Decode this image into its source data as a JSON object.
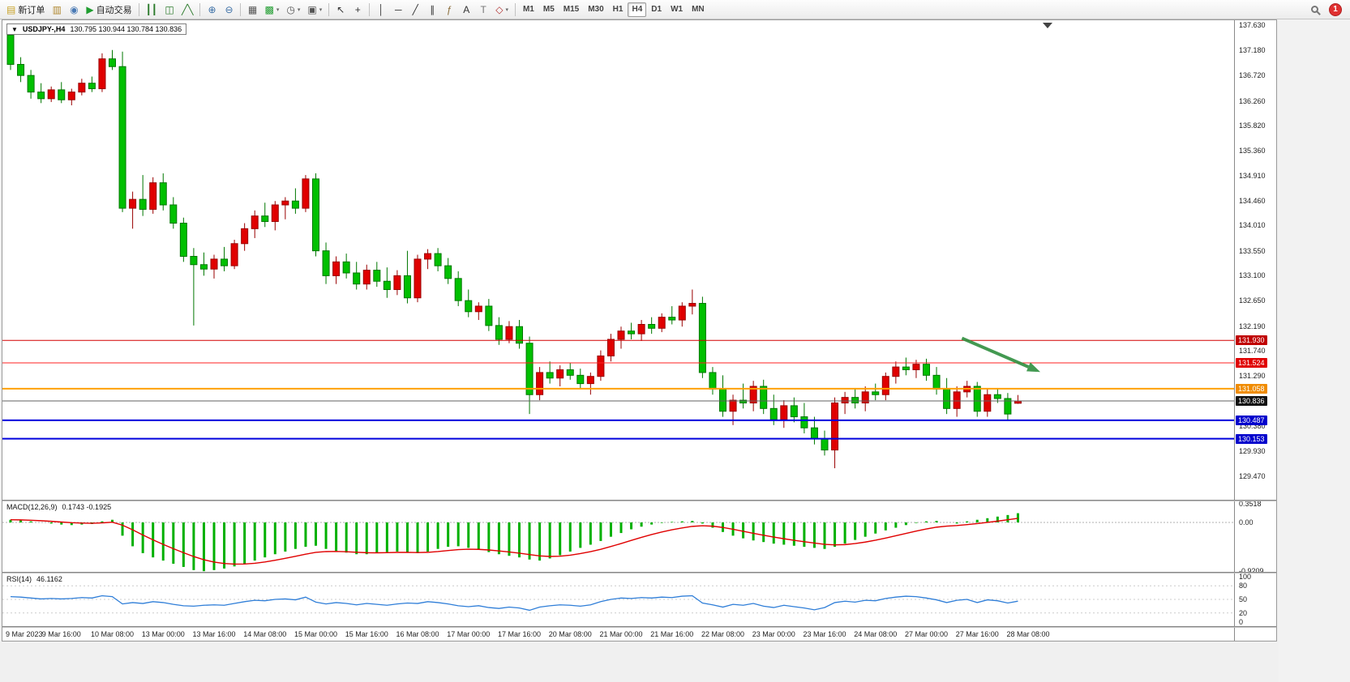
{
  "toolbar": {
    "notification_count": "1",
    "items": [
      {
        "name": "new-order-button",
        "label": "新订单",
        "glyph": "▤",
        "glyph_color": "#c9a227",
        "icon": "new-order-icon"
      },
      {
        "name": "charts-window-button",
        "glyph": "▥",
        "glyph_color": "#b08830",
        "icon": "chart-window-icon"
      },
      {
        "name": "profile-button",
        "glyph": "◉",
        "glyph_color": "#4a7ab5",
        "icon": "profile-icon"
      },
      {
        "name": "auto-trading-button",
        "label": "自动交易",
        "glyph": "▶",
        "glyph_color": "#1f9d2f",
        "icon": "play-icon"
      },
      {
        "type": "separator"
      },
      {
        "name": "bar-chart-button",
        "glyph": "┃┃",
        "glyph_color": "#2a7a2a",
        "icon": "bar-chart-icon"
      },
      {
        "name": "candlestick-chart-button",
        "glyph": "◫",
        "glyph_color": "#2a7a2a",
        "icon": "candlestick-icon"
      },
      {
        "name": "line-chart-button",
        "glyph": "╱╲",
        "glyph_color": "#2a7a2a",
        "icon": "line-chart-icon"
      },
      {
        "type": "separator"
      },
      {
        "name": "zoom-in-button",
        "glyph": "⊕",
        "glyph_color": "#3a6ea5",
        "icon": "zoom-in-icon"
      },
      {
        "name": "zoom-out-button",
        "glyph": "⊖",
        "glyph_color": "#3a6ea5",
        "icon": "zoom-out-icon"
      },
      {
        "type": "separator"
      },
      {
        "name": "tile-windows-button",
        "glyph": "▦",
        "glyph_color": "#555555",
        "icon": "tile-windows-icon"
      },
      {
        "name": "indicators-button",
        "glyph": "▩",
        "glyph_color": "#1f9d2f",
        "dropdown": true,
        "icon": "indicators-icon"
      },
      {
        "name": "periods-button",
        "glyph": "◷",
        "glyph_color": "#555555",
        "dropdown": true,
        "icon": "clock-icon"
      },
      {
        "name": "templates-button",
        "glyph": "▣",
        "glyph_color": "#555555",
        "dropdown": true,
        "icon": "template-icon"
      },
      {
        "type": "separator"
      },
      {
        "name": "cursor-button",
        "glyph": "↖",
        "glyph_color": "#333333",
        "icon": "cursor-icon"
      },
      {
        "name": "crosshair-button",
        "glyph": "+",
        "glyph_color": "#333333",
        "icon": "crosshair-icon"
      },
      {
        "type": "separator"
      },
      {
        "name": "vertical-line-button",
        "glyph": "│",
        "glyph_color": "#333333",
        "icon": "vertical-line-icon"
      },
      {
        "name": "horizontal-line-button",
        "glyph": "─",
        "glyph_color": "#333333",
        "icon": "horizontal-line-icon"
      },
      {
        "name": "trendline-button",
        "glyph": "╱",
        "glyph_color": "#333333",
        "icon": "trendline-icon"
      },
      {
        "name": "equidistant-channel-button",
        "glyph": "∥",
        "glyph_color": "#333333",
        "icon": "channel-icon"
      },
      {
        "name": "fibonacci-button",
        "glyph": "ƒ",
        "glyph_color": "#8a6d3b",
        "icon": "fibonacci-icon"
      },
      {
        "name": "text-button",
        "glyph": "A",
        "glyph_color": "#333333",
        "icon": "text-icon"
      },
      {
        "name": "label-button",
        "glyph": "T",
        "glyph_color": "#777777",
        "icon": "label-icon"
      },
      {
        "name": "shapes-button",
        "glyph": "◇",
        "glyph_color": "#b03030",
        "dropdown": true,
        "icon": "shapes-icon"
      },
      {
        "type": "separator"
      },
      {
        "name": "timeframe-m1",
        "label": "M1",
        "type": "timeframe"
      },
      {
        "name": "timeframe-m5",
        "label": "M5",
        "type": "timeframe"
      },
      {
        "name": "timeframe-m15",
        "label": "M15",
        "type": "timeframe"
      },
      {
        "name": "timeframe-m30",
        "label": "M30",
        "type": "timeframe"
      },
      {
        "name": "timeframe-h1",
        "label": "H1",
        "type": "timeframe"
      },
      {
        "name": "timeframe-h4",
        "label": "H4",
        "type": "timeframe",
        "active": true
      },
      {
        "name": "timeframe-d1",
        "label": "D1",
        "type": "timeframe"
      },
      {
        "name": "timeframe-w1",
        "label": "W1",
        "type": "timeframe"
      },
      {
        "name": "timeframe-mn",
        "label": "MN",
        "type": "timeframe"
      }
    ]
  },
  "chart": {
    "symbol_label": "USDJPY-,H4",
    "ohlc_text": "130.795 130.944 130.784 130.836"
  },
  "chart_data": {
    "type": "candlestick",
    "symbol": "USDJPY-",
    "timeframe": "H4",
    "ohlc_current": {
      "open": 130.795,
      "high": 130.944,
      "low": 130.784,
      "close": 130.836
    },
    "ylim": [
      129.47,
      137.63
    ],
    "colors": {
      "bull": "#e00000",
      "bull_border": "#990000",
      "bear": "#00c000",
      "bear_border": "#007700",
      "macd_bar": "#00b000",
      "macd_signal": "#e00000",
      "rsi_line": "#2f7ed8"
    },
    "price_axis_ticks": [
      "137.630",
      "137.180",
      "136.720",
      "136.260",
      "135.820",
      "135.360",
      "134.910",
      "134.460",
      "134.010",
      "133.550",
      "133.100",
      "132.650",
      "132.190",
      "131.740",
      "131.290",
      "130.380",
      "129.930",
      "129.470"
    ],
    "levels": [
      {
        "price": 131.93,
        "label": "131.930",
        "line_color": "#d40000",
        "badge_color": "#c00000",
        "width": 1
      },
      {
        "price": 131.524,
        "label": "131.524",
        "line_color": "#ff2020",
        "badge_color": "#e00000",
        "width": 1
      },
      {
        "price": 131.058,
        "label": "131.058",
        "line_color": "#ffa000",
        "badge_color": "#f08c00",
        "width": 2
      },
      {
        "price": 130.836,
        "label": "130.836",
        "line_color": "#606060",
        "badge_color": "#111111",
        "width": 1
      },
      {
        "price": 130.487,
        "label": "130.487",
        "line_color": "#0000dd",
        "badge_color": "#0000cc",
        "width": 2
      },
      {
        "price": 130.153,
        "label": "130.153",
        "line_color": "#0000dd",
        "badge_color": "#0000cc",
        "width": 2
      }
    ],
    "annotation_arrow": {
      "from": {
        "index": 93.5,
        "price": 131.97
      },
      "to": {
        "index": 101.2,
        "price": 131.36
      },
      "color": "#2f8f3f"
    },
    "candles": [
      [
        137.45,
        137.62,
        136.82,
        136.92
      ],
      [
        136.92,
        137.05,
        136.6,
        136.72
      ],
      [
        136.72,
        136.82,
        136.3,
        136.42
      ],
      [
        136.42,
        136.58,
        136.22,
        136.3
      ],
      [
        136.3,
        136.52,
        136.24,
        136.46
      ],
      [
        136.46,
        136.6,
        136.22,
        136.28
      ],
      [
        136.28,
        136.48,
        136.18,
        136.42
      ],
      [
        136.42,
        136.66,
        136.36,
        136.58
      ],
      [
        136.58,
        136.7,
        136.42,
        136.48
      ],
      [
        136.48,
        137.12,
        136.42,
        137.02
      ],
      [
        137.02,
        137.18,
        136.82,
        136.88
      ],
      [
        136.88,
        137.15,
        134.25,
        134.32
      ],
      [
        134.32,
        134.62,
        133.95,
        134.48
      ],
      [
        134.48,
        134.92,
        134.18,
        134.3
      ],
      [
        134.3,
        134.88,
        134.22,
        134.78
      ],
      [
        134.78,
        134.95,
        134.28,
        134.38
      ],
      [
        134.38,
        134.52,
        133.95,
        134.05
      ],
      [
        134.05,
        134.15,
        133.35,
        133.45
      ],
      [
        133.45,
        133.6,
        132.2,
        133.3
      ],
      [
        133.3,
        133.52,
        133.1,
        133.22
      ],
      [
        133.22,
        133.48,
        133.05,
        133.4
      ],
      [
        133.4,
        133.62,
        133.18,
        133.28
      ],
      [
        133.28,
        133.75,
        133.22,
        133.68
      ],
      [
        133.68,
        134.05,
        133.55,
        133.95
      ],
      [
        133.95,
        134.28,
        133.78,
        134.18
      ],
      [
        134.18,
        134.42,
        133.98,
        134.08
      ],
      [
        134.08,
        134.45,
        133.92,
        134.38
      ],
      [
        134.38,
        134.52,
        134.12,
        134.45
      ],
      [
        134.45,
        134.68,
        134.22,
        134.32
      ],
      [
        134.32,
        134.92,
        134.25,
        134.85
      ],
      [
        134.85,
        134.95,
        133.45,
        133.55
      ],
      [
        133.55,
        133.7,
        132.95,
        133.1
      ],
      [
        133.1,
        133.45,
        132.95,
        133.35
      ],
      [
        133.35,
        133.5,
        133.05,
        133.15
      ],
      [
        133.15,
        133.35,
        132.85,
        132.95
      ],
      [
        132.95,
        133.3,
        132.85,
        133.2
      ],
      [
        133.2,
        133.35,
        132.9,
        133.0
      ],
      [
        133.0,
        133.25,
        132.7,
        132.85
      ],
      [
        132.85,
        133.2,
        132.75,
        133.1
      ],
      [
        133.1,
        133.55,
        132.6,
        132.7
      ],
      [
        132.7,
        133.48,
        132.62,
        133.4
      ],
      [
        133.4,
        133.58,
        133.22,
        133.5
      ],
      [
        133.5,
        133.6,
        133.18,
        133.28
      ],
      [
        133.28,
        133.42,
        132.95,
        133.05
      ],
      [
        133.05,
        133.18,
        132.55,
        132.65
      ],
      [
        132.65,
        132.85,
        132.35,
        132.45
      ],
      [
        132.45,
        132.62,
        132.3,
        132.55
      ],
      [
        132.55,
        132.68,
        132.1,
        132.2
      ],
      [
        132.2,
        132.35,
        131.85,
        131.95
      ],
      [
        131.95,
        132.28,
        131.88,
        132.18
      ],
      [
        132.18,
        132.3,
        131.78,
        131.88
      ],
      [
        131.88,
        132.0,
        130.6,
        130.95
      ],
      [
        130.95,
        131.45,
        130.85,
        131.35
      ],
      [
        131.35,
        131.55,
        131.15,
        131.25
      ],
      [
        131.25,
        131.48,
        131.1,
        131.4
      ],
      [
        131.4,
        131.52,
        131.22,
        131.3
      ],
      [
        131.3,
        131.42,
        131.05,
        131.15
      ],
      [
        131.15,
        131.35,
        130.95,
        131.28
      ],
      [
        131.28,
        131.75,
        131.2,
        131.65
      ],
      [
        131.65,
        132.05,
        131.55,
        131.95
      ],
      [
        131.95,
        132.18,
        131.78,
        132.1
      ],
      [
        132.1,
        132.25,
        131.95,
        132.05
      ],
      [
        132.05,
        132.3,
        131.92,
        132.22
      ],
      [
        132.22,
        132.35,
        132.05,
        132.15
      ],
      [
        132.15,
        132.42,
        132.08,
        132.35
      ],
      [
        132.35,
        132.55,
        132.22,
        132.3
      ],
      [
        132.3,
        132.62,
        132.18,
        132.55
      ],
      [
        132.55,
        132.85,
        132.4,
        132.6
      ],
      [
        132.6,
        132.72,
        131.25,
        131.35
      ],
      [
        131.35,
        131.45,
        130.95,
        131.05
      ],
      [
        131.05,
        131.3,
        130.55,
        130.65
      ],
      [
        130.65,
        130.95,
        130.4,
        130.85
      ],
      [
        130.85,
        131.15,
        130.7,
        130.8
      ],
      [
        130.8,
        131.2,
        130.65,
        131.1
      ],
      [
        131.1,
        131.22,
        130.6,
        130.7
      ],
      [
        130.7,
        130.95,
        130.4,
        130.5
      ],
      [
        130.5,
        130.85,
        130.35,
        130.75
      ],
      [
        130.75,
        130.9,
        130.45,
        130.55
      ],
      [
        130.55,
        130.8,
        130.25,
        130.35
      ],
      [
        130.35,
        130.55,
        130.05,
        130.15
      ],
      [
        130.15,
        130.3,
        129.85,
        129.95
      ],
      [
        129.95,
        130.9,
        129.62,
        130.8
      ],
      [
        130.8,
        131.0,
        130.6,
        130.9
      ],
      [
        130.9,
        131.05,
        130.7,
        130.8
      ],
      [
        130.8,
        131.1,
        130.65,
        131.0
      ],
      [
        131.0,
        131.15,
        130.85,
        130.95
      ],
      [
        130.95,
        131.35,
        130.85,
        131.28
      ],
      [
        131.28,
        131.55,
        131.15,
        131.45
      ],
      [
        131.45,
        131.62,
        131.3,
        131.4
      ],
      [
        131.4,
        131.58,
        131.25,
        131.5
      ],
      [
        131.5,
        131.6,
        131.2,
        131.3
      ],
      [
        131.3,
        131.45,
        130.95,
        131.05
      ],
      [
        131.05,
        131.25,
        130.6,
        130.7
      ],
      [
        130.7,
        131.1,
        130.55,
        131.0
      ],
      [
        131.0,
        131.2,
        130.9,
        131.1
      ],
      [
        131.1,
        131.18,
        130.55,
        130.65
      ],
      [
        130.65,
        131.05,
        130.55,
        130.95
      ],
      [
        130.95,
        131.05,
        130.8,
        130.88
      ],
      [
        130.88,
        130.98,
        130.5,
        130.6
      ],
      [
        130.795,
        130.944,
        130.784,
        130.836
      ]
    ],
    "macd": {
      "title": "MACD(12,26,9)",
      "values_text": "0.1743 -0.1925",
      "axis_ticks": [
        "0.3518",
        "0.00",
        "-0.9209"
      ],
      "histogram": [
        0.05,
        0.04,
        0.02,
        0.0,
        -0.02,
        -0.04,
        -0.05,
        -0.04,
        -0.03,
        0.02,
        0.05,
        -0.25,
        -0.45,
        -0.58,
        -0.66,
        -0.72,
        -0.78,
        -0.84,
        -0.9,
        -0.92,
        -0.9,
        -0.87,
        -0.83,
        -0.78,
        -0.72,
        -0.66,
        -0.6,
        -0.55,
        -0.5,
        -0.46,
        -0.44,
        -0.5,
        -0.54,
        -0.57,
        -0.6,
        -0.6,
        -0.58,
        -0.56,
        -0.55,
        -0.56,
        -0.58,
        -0.55,
        -0.5,
        -0.46,
        -0.45,
        -0.48,
        -0.52,
        -0.56,
        -0.6,
        -0.63,
        -0.66,
        -0.7,
        -0.72,
        -0.68,
        -0.62,
        -0.55,
        -0.48,
        -0.42,
        -0.35,
        -0.27,
        -0.2,
        -0.13,
        -0.08,
        -0.04,
        -0.01,
        0.01,
        0.02,
        0.03,
        -0.02,
        -0.1,
        -0.18,
        -0.25,
        -0.3,
        -0.34,
        -0.37,
        -0.4,
        -0.42,
        -0.44,
        -0.46,
        -0.48,
        -0.5,
        -0.46,
        -0.4,
        -0.33,
        -0.27,
        -0.21,
        -0.15,
        -0.1,
        -0.05,
        -0.01,
        0.02,
        0.03,
        0.0,
        -0.02,
        0.02,
        0.05,
        0.08,
        0.11,
        0.14,
        0.1743
      ]
    },
    "rsi": {
      "title": "RSI(14)",
      "value_text": "46.1162",
      "axis_ticks": [
        "100",
        "80",
        "50",
        "20",
        "0"
      ],
      "values": [
        56,
        55,
        53,
        51,
        52,
        51,
        52,
        54,
        53,
        58,
        56,
        40,
        43,
        41,
        45,
        43,
        39,
        36,
        35,
        37,
        38,
        37,
        41,
        45,
        48,
        47,
        50,
        51,
        49,
        55,
        44,
        40,
        43,
        41,
        38,
        41,
        39,
        37,
        40,
        42,
        41,
        45,
        43,
        40,
        36,
        34,
        36,
        32,
        30,
        33,
        31,
        26,
        33,
        36,
        38,
        37,
        35,
        38,
        45,
        50,
        53,
        52,
        54,
        53,
        55,
        54,
        57,
        58,
        42,
        38,
        33,
        39,
        37,
        41,
        35,
        32,
        37,
        34,
        31,
        27,
        32,
        43,
        46,
        44,
        48,
        47,
        52,
        55,
        57,
        56,
        53,
        49,
        43,
        48,
        50,
        43,
        49,
        47,
        42,
        46.1
      ]
    },
    "dates": [
      "9 Mar 2023",
      "9 Mar 16:00",
      "10 Mar 08:00",
      "13 Mar 00:00",
      "13 Mar 16:00",
      "14 Mar 08:00",
      "15 Mar 00:00",
      "15 Mar 16:00",
      "16 Mar 08:00",
      "17 Mar 00:00",
      "17 Mar 16:00",
      "20 Mar 08:00",
      "21 Mar 00:00",
      "21 Mar 16:00",
      "22 Mar 08:00",
      "23 Mar 00:00",
      "23 Mar 16:00",
      "24 Mar 08:00",
      "27 Mar 00:00",
      "27 Mar 16:00",
      "28 Mar 08:00"
    ]
  }
}
